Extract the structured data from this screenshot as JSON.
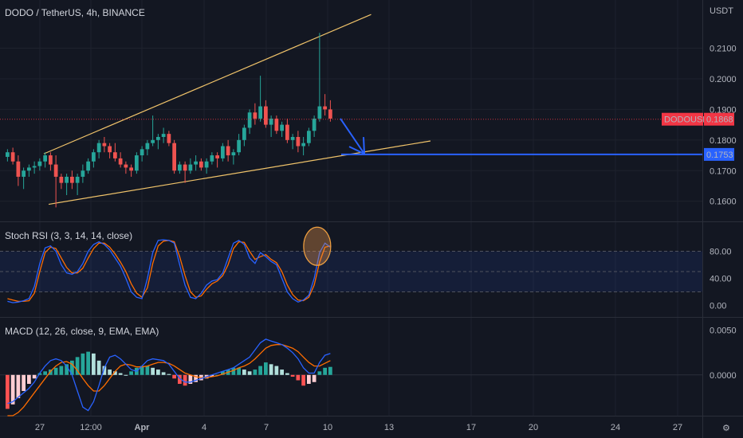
{
  "symbol_header": "DODO / TetherUS, 4h, BINANCE",
  "price_axis_unit": "USDT",
  "current_price_tag": {
    "label": "DODOUSDT",
    "value": "0.1868",
    "color": "#f23645"
  },
  "target_price_tag": {
    "value": "0.1753",
    "color": "#2962ff"
  },
  "stoch_header": "Stoch RSI (3, 3, 14, 14, close)",
  "macd_header": "MACD (12, 26, close, 9, EMA, EMA)",
  "colors": {
    "up": "#26a69a",
    "down": "#ef5350",
    "channel": "#f0c36a",
    "k_line": "#2962ff",
    "d_line": "#ff6d00",
    "macd_line": "#2962ff",
    "signal_line": "#ff6d00",
    "hist_up_strong": "#26a69a",
    "hist_up_weak": "#b2dfdb",
    "hist_down_strong": "#ff5252",
    "hist_down_weak": "#ffcdd2"
  },
  "chart_data": [
    {
      "type": "candlestick",
      "title": "DODO / TetherUS, 4h, BINANCE",
      "x_ticks": [
        "27",
        "12:00",
        "Apr",
        "4",
        "7",
        "10",
        "13",
        "17",
        "20",
        "24",
        "27"
      ],
      "y_ticks": [
        "0.2100",
        "0.2000",
        "0.1900",
        "0.1800",
        "0.1700",
        "0.1600"
      ],
      "ylim": [
        0.1555,
        0.2195
      ],
      "candles": [
        [
          0.1745,
          0.177,
          0.173,
          0.176
        ],
        [
          0.176,
          0.1775,
          0.172,
          0.173
        ],
        [
          0.173,
          0.175,
          0.165,
          0.168
        ],
        [
          0.168,
          0.171,
          0.164,
          0.17
        ],
        [
          0.17,
          0.172,
          0.168,
          0.171
        ],
        [
          0.171,
          0.173,
          0.169,
          0.1715
        ],
        [
          0.1715,
          0.174,
          0.17,
          0.173
        ],
        [
          0.173,
          0.176,
          0.171,
          0.175
        ],
        [
          0.175,
          0.176,
          0.17,
          0.172
        ],
        [
          0.172,
          0.175,
          0.158,
          0.168
        ],
        [
          0.168,
          0.169,
          0.164,
          0.166
        ],
        [
          0.166,
          0.169,
          0.162,
          0.168
        ],
        [
          0.168,
          0.17,
          0.164,
          0.166
        ],
        [
          0.166,
          0.169,
          0.162,
          0.168
        ],
        [
          0.168,
          0.172,
          0.166,
          0.17
        ],
        [
          0.17,
          0.174,
          0.169,
          0.173
        ],
        [
          0.173,
          0.177,
          0.171,
          0.176
        ],
        [
          0.176,
          0.18,
          0.174,
          0.179
        ],
        [
          0.179,
          0.181,
          0.176,
          0.178
        ],
        [
          0.178,
          0.179,
          0.174,
          0.176
        ],
        [
          0.176,
          0.179,
          0.173,
          0.174
        ],
        [
          0.174,
          0.176,
          0.171,
          0.172
        ],
        [
          0.172,
          0.173,
          0.169,
          0.171
        ],
        [
          0.171,
          0.172,
          0.168,
          0.17
        ],
        [
          0.17,
          0.176,
          0.169,
          0.175
        ],
        [
          0.175,
          0.178,
          0.173,
          0.177
        ],
        [
          0.177,
          0.18,
          0.175,
          0.179
        ],
        [
          0.179,
          0.188,
          0.178,
          0.18
        ],
        [
          0.18,
          0.182,
          0.177,
          0.181
        ],
        [
          0.181,
          0.184,
          0.179,
          0.182
        ],
        [
          0.182,
          0.183,
          0.178,
          0.179
        ],
        [
          0.179,
          0.18,
          0.169,
          0.17
        ],
        [
          0.17,
          0.173,
          0.169,
          0.172
        ],
        [
          0.172,
          0.173,
          0.166,
          0.17
        ],
        [
          0.17,
          0.174,
          0.169,
          0.172
        ],
        [
          0.172,
          0.175,
          0.17,
          0.173
        ],
        [
          0.173,
          0.174,
          0.17,
          0.171
        ],
        [
          0.171,
          0.174,
          0.169,
          0.173
        ],
        [
          0.173,
          0.176,
          0.172,
          0.175
        ],
        [
          0.175,
          0.176,
          0.171,
          0.174
        ],
        [
          0.174,
          0.179,
          0.173,
          0.178
        ],
        [
          0.178,
          0.18,
          0.173,
          0.175
        ],
        [
          0.175,
          0.177,
          0.172,
          0.176
        ],
        [
          0.176,
          0.182,
          0.175,
          0.18
        ],
        [
          0.18,
          0.185,
          0.178,
          0.184
        ],
        [
          0.184,
          0.19,
          0.182,
          0.189
        ],
        [
          0.189,
          0.192,
          0.185,
          0.187
        ],
        [
          0.187,
          0.201,
          0.186,
          0.191
        ],
        [
          0.191,
          0.193,
          0.184,
          0.185
        ],
        [
          0.185,
          0.188,
          0.181,
          0.187
        ],
        [
          0.187,
          0.188,
          0.182,
          0.183
        ],
        [
          0.183,
          0.186,
          0.181,
          0.185
        ],
        [
          0.185,
          0.187,
          0.179,
          0.18
        ],
        [
          0.18,
          0.182,
          0.177,
          0.181
        ],
        [
          0.181,
          0.183,
          0.176,
          0.178
        ],
        [
          0.178,
          0.181,
          0.175,
          0.179
        ],
        [
          0.179,
          0.184,
          0.178,
          0.183
        ],
        [
          0.183,
          0.188,
          0.181,
          0.187
        ],
        [
          0.187,
          0.215,
          0.186,
          0.191
        ],
        [
          0.191,
          0.195,
          0.188,
          0.19
        ],
        [
          0.19,
          0.193,
          0.186,
          0.187
        ]
      ],
      "channel_upper": [
        [
          0.1755,
          0
        ],
        [
          0.221,
          46
        ]
      ],
      "channel_lower": [
        [
          0.159,
          0
        ],
        [
          0.1797,
          72
        ]
      ],
      "annotations": [
        {
          "type": "arrow",
          "from": [
            0.187,
            60
          ],
          "to": [
            0.1753,
            64
          ]
        },
        {
          "type": "horizontal_line",
          "price": 0.1753,
          "label": "0.1753"
        },
        {
          "type": "price_line",
          "price": 0.1868,
          "label": "DODOUSDT 0.1868"
        }
      ]
    },
    {
      "type": "line",
      "title": "Stoch RSI (3, 3, 14, 14, close)",
      "y_ticks": [
        "80.00",
        "40.00",
        "0.00"
      ],
      "ylim": [
        -10,
        110
      ],
      "bands": [
        80,
        50,
        20
      ],
      "series": [
        {
          "values": [
            6,
            4,
            5,
            7,
            10,
            28,
            62,
            85,
            88,
            80,
            60,
            48,
            46,
            50,
            62,
            80,
            90,
            94,
            90,
            82,
            70,
            58,
            40,
            20,
            12,
            10,
            40,
            78,
            96,
            97,
            96,
            92,
            60,
            30,
            12,
            10,
            18,
            30,
            36,
            38,
            48,
            70,
            92,
            96,
            90,
            70,
            62,
            78,
            72,
            65,
            60,
            40,
            20,
            10,
            5,
            8,
            15,
            40,
            78,
            92,
            86
          ]
        },
        {
          "values": [
            10,
            8,
            6,
            6,
            7,
            18,
            50,
            78,
            86,
            84,
            70,
            56,
            48,
            48,
            55,
            70,
            84,
            92,
            92,
            86,
            76,
            64,
            50,
            32,
            18,
            12,
            26,
            62,
            88,
            95,
            96,
            94,
            72,
            44,
            20,
            12,
            14,
            24,
            32,
            36,
            44,
            60,
            84,
            94,
            93,
            80,
            68,
            72,
            75,
            68,
            63,
            50,
            30,
            16,
            8,
            7,
            12,
            30,
            64,
            86,
            88
          ]
        }
      ],
      "highlight": {
        "type": "circle",
        "at_bar": 58,
        "value": 85
      }
    },
    {
      "type": "line",
      "title": "MACD (12, 26, close, 9, EMA, EMA)",
      "y_ticks": [
        "0.0050",
        "0.0000"
      ],
      "ylim": [
        -0.0043,
        0.0056
      ],
      "macd": [
        -0.0032,
        -0.003,
        -0.0025,
        -0.002,
        -0.0015,
        -0.0008,
        0.0002,
        0.001,
        0.0016,
        0.0018,
        0.0016,
        0.001,
        0.0,
        -0.0018,
        -0.0036,
        -0.004,
        -0.003,
        -0.0012,
        0.0008,
        0.002,
        0.0022,
        0.0018,
        0.0012,
        0.0006,
        0.0004,
        0.001,
        0.0016,
        0.0018,
        0.0017,
        0.0016,
        0.0012,
        0.0004,
        -0.0004,
        -0.0008,
        -0.0008,
        -0.0006,
        -0.0004,
        -0.0002,
        0.0,
        0.0002,
        0.0004,
        0.0006,
        0.0008,
        0.0012,
        0.0016,
        0.002,
        0.0028,
        0.0036,
        0.004,
        0.0038,
        0.0036,
        0.0034,
        0.003,
        0.0025,
        0.0018,
        0.0008,
        0.0002,
        0.0002,
        0.0014,
        0.0022,
        0.0024
      ],
      "signal": [
        -0.0052,
        -0.0048,
        -0.0042,
        -0.0036,
        -0.0028,
        -0.002,
        -0.0012,
        -0.0004,
        0.0004,
        0.001,
        0.0014,
        0.0015,
        0.0012,
        0.0005,
        -0.0004,
        -0.0012,
        -0.0018,
        -0.0018,
        -0.0012,
        -0.0004,
        0.0004,
        0.001,
        0.0012,
        0.0011,
        0.0009,
        0.0009,
        0.001,
        0.0012,
        0.0014,
        0.0014,
        0.0013,
        0.001,
        0.0006,
        0.0002,
        0.0,
        -0.0002,
        -0.0003,
        -0.0003,
        -0.0002,
        -0.0001,
        0.0001,
        0.0003,
        0.0005,
        0.0008,
        0.001,
        0.0013,
        0.0018,
        0.0024,
        0.003,
        0.0033,
        0.0034,
        0.0034,
        0.0032,
        0.003,
        0.0026,
        0.002,
        0.0014,
        0.001,
        0.001,
        0.0013,
        0.0016
      ],
      "histogram": [
        -0.0038,
        -0.0033,
        -0.0026,
        -0.0018,
        -0.001,
        -0.0004,
        0.0002,
        0.0004,
        0.0006,
        0.0008,
        0.001,
        0.0012,
        0.0016,
        0.002,
        0.0024,
        0.0026,
        0.0024,
        0.0016,
        0.001,
        0.0006,
        0.0004,
        0.0002,
        0.0,
        0.0004,
        0.0008,
        0.001,
        0.001,
        0.0008,
        0.0006,
        0.0003,
        0.0001,
        -0.0004,
        -0.001,
        -0.0012,
        -0.001,
        -0.0008,
        -0.0006,
        -0.0004,
        -0.0002,
        0.0,
        0.0004,
        0.0006,
        0.0008,
        0.0008,
        0.0006,
        0.0004,
        0.0006,
        0.001,
        0.0014,
        0.0012,
        0.001,
        0.0006,
        0.0002,
        -0.0002,
        -0.0006,
        -0.0012,
        -0.001,
        -0.0008,
        0.0004,
        0.0008,
        0.0009
      ]
    }
  ]
}
